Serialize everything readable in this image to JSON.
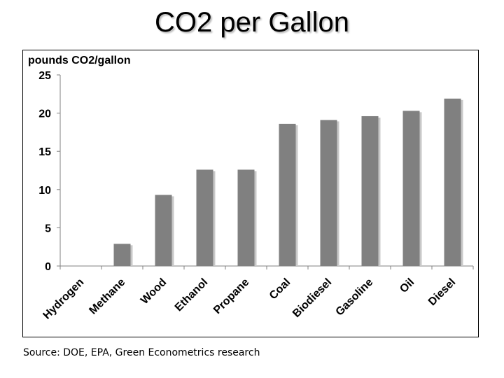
{
  "slide": {
    "title": "CO2 per Gallon",
    "source": "Source: DOE, EPA, Green Econometrics research"
  },
  "chart_data": {
    "type": "bar",
    "title": "CO2 per Gallon",
    "ylabel": "pounds CO2/gallon",
    "xlabel": "",
    "categories": [
      "Hydrogen",
      "Methane",
      "Wood",
      "Ethanol",
      "Propane",
      "Coal",
      "Biodiesel",
      "Gasoline",
      "Oil",
      "Diesel"
    ],
    "values": [
      0,
      2.9,
      9.3,
      12.6,
      12.6,
      18.6,
      19.1,
      19.6,
      20.3,
      21.9
    ],
    "ylim": [
      0,
      25
    ],
    "yticks": [
      0,
      5,
      10,
      15,
      20,
      25
    ],
    "grid": false,
    "legend": "none",
    "colors": {
      "bar": "#808080",
      "bar_shadow": "#c8c8c8",
      "axis": "#808080",
      "text": "#000000"
    }
  }
}
